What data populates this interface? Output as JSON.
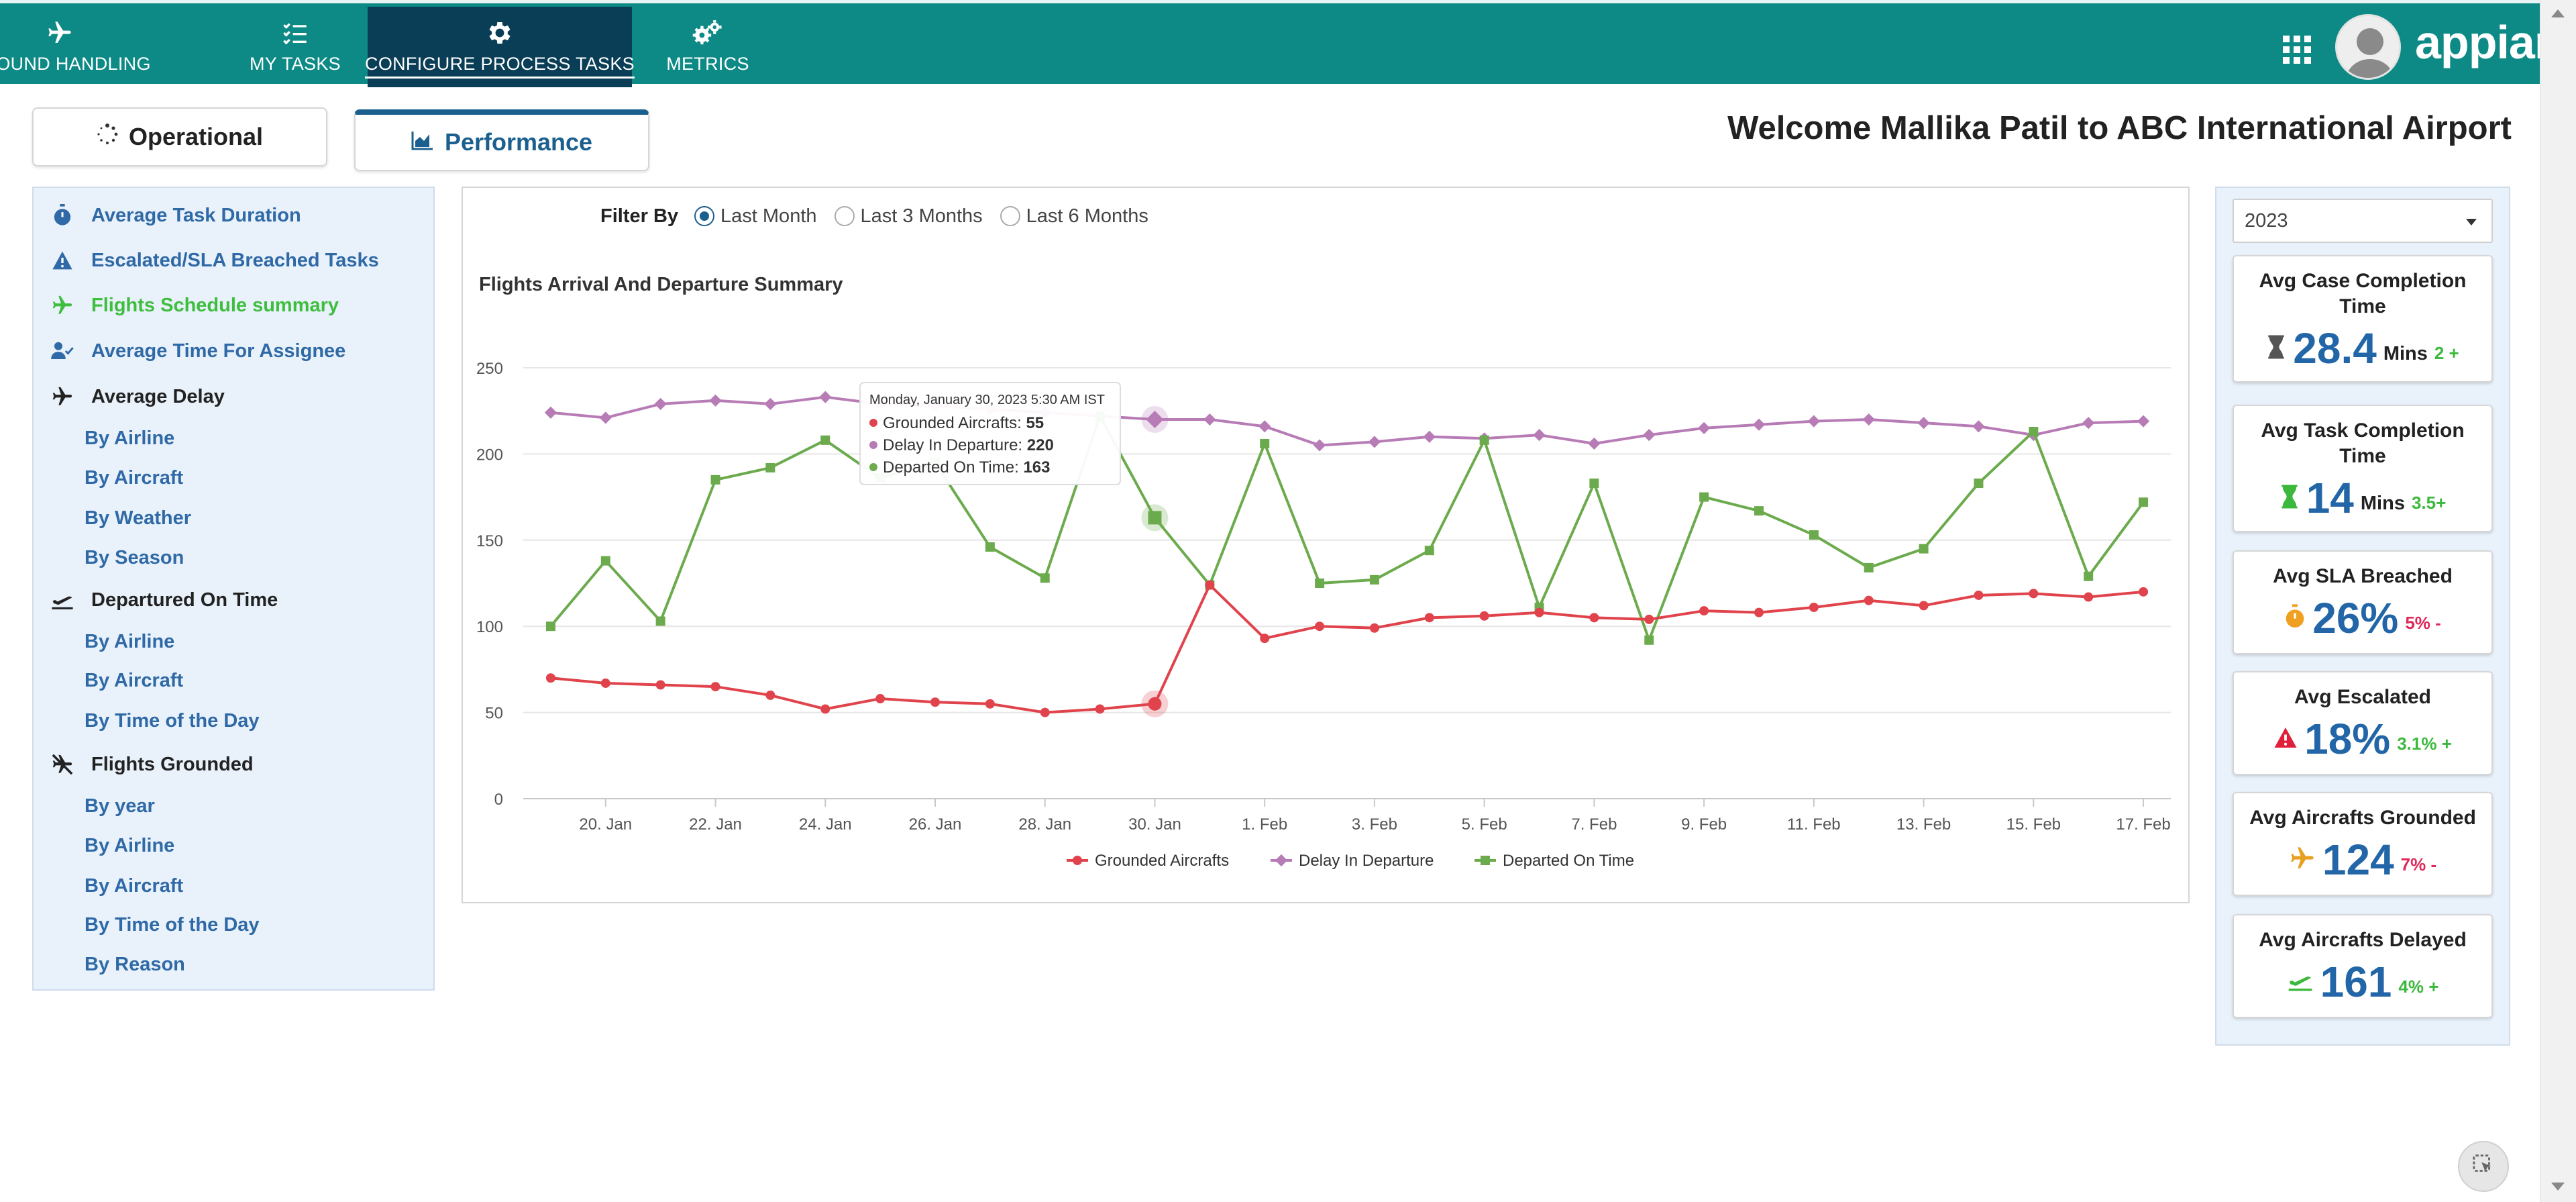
{
  "nav": {
    "tabs": [
      {
        "label": "GROUND HANDLING",
        "icon": "plane-icon"
      },
      {
        "label": "MY TASKS",
        "icon": "checklist-icon"
      },
      {
        "label": "CONFIGURE PROCESS TASKS",
        "icon": "gear-icon",
        "active": true
      },
      {
        "label": "METRICS",
        "icon": "gears-icon"
      }
    ],
    "brand": "appian"
  },
  "main_tabs": {
    "operational": "Operational",
    "performance": "Performance"
  },
  "welcome": "Welcome Mallika Patil to ABC International Airport",
  "sidebar": {
    "items": [
      {
        "label": "Average Task Duration",
        "icon": "stopwatch-icon"
      },
      {
        "label": "Escalated/SLA Breached Tasks",
        "icon": "warning-icon"
      },
      {
        "label": "Flights Schedule summary",
        "icon": "plane-icon",
        "active": true
      },
      {
        "label": "Average Time For Assignee",
        "icon": "user-check-icon"
      },
      {
        "label": "Average Delay",
        "icon": "plane-icon"
      },
      {
        "label": "Departured On Time",
        "icon": "plane-departure-icon"
      },
      {
        "label": "Flights Grounded",
        "icon": "plane-slash-icon"
      }
    ],
    "average_delay_subs": [
      "By Airline",
      "By Aircraft",
      "By Weather",
      "By Season"
    ],
    "departured_subs": [
      "By Airline",
      "By Aircraft",
      "By Time of the Day"
    ],
    "grounded_subs": [
      "By year",
      "By Airline",
      "By Aircraft",
      "By Time of the Day",
      "By Reason"
    ]
  },
  "filter": {
    "label": "Filter By",
    "options": [
      "Last Month",
      "Last 3 Months",
      "Last 6 Months"
    ],
    "selected": "Last Month"
  },
  "chart_title": "Flights Arrival And Departure Summary",
  "chart_data": {
    "type": "line",
    "x_tick_labels": [
      "20. Jan",
      "22. Jan",
      "24. Jan",
      "26. Jan",
      "28. Jan",
      "30. Jan",
      "1. Feb",
      "3. Feb",
      "5. Feb",
      "7. Feb",
      "9. Feb",
      "11. Feb",
      "13. Feb",
      "15. Feb",
      "17. Feb"
    ],
    "x_start": "2023-01-19",
    "ylim": [
      0,
      250
    ],
    "y_ticks": [
      0,
      50,
      100,
      150,
      200,
      250
    ],
    "grid": true,
    "legend_position": "bottom-center",
    "series": [
      {
        "name": "Grounded Aircrafts",
        "color": "#e0434b",
        "marker": "circle",
        "values": [
          70,
          67,
          66,
          65,
          60,
          52,
          58,
          56,
          55,
          50,
          52,
          55,
          124,
          93,
          100,
          99,
          105,
          106,
          108,
          105,
          104,
          109,
          108,
          111,
          115,
          112,
          118,
          119,
          117,
          120
        ]
      },
      {
        "name": "Delay In Departure",
        "color": "#b77cb6",
        "marker": "diamond",
        "values": [
          224,
          221,
          229,
          231,
          229,
          233,
          229,
          228,
          226,
          224,
          222,
          220,
          220,
          216,
          205,
          207,
          210,
          209,
          211,
          206,
          211,
          215,
          217,
          219,
          220,
          218,
          216,
          211,
          218,
          219
        ]
      },
      {
        "name": "Departed On Time",
        "color": "#6cab4d",
        "marker": "square",
        "values": [
          100,
          138,
          103,
          185,
          192,
          208,
          186,
          195,
          146,
          128,
          222,
          163,
          124,
          206,
          125,
          127,
          144,
          208,
          111,
          183,
          92,
          175,
          167,
          153,
          134,
          145,
          183,
          213,
          129,
          172
        ]
      }
    ],
    "tooltip": {
      "header": "Monday, January 30, 2023 5:30 AM IST",
      "rows": [
        {
          "label": "Grounded Aircrafts",
          "value": "55",
          "color": "#e0434b"
        },
        {
          "label": "Delay In Departure",
          "value": "220",
          "color": "#b77cb6"
        },
        {
          "label": "Departed On Time",
          "value": "163",
          "color": "#6cab4d"
        }
      ],
      "index": 11
    }
  },
  "year_select": "2023",
  "kpis": [
    {
      "title": "Avg Case Completion Time",
      "value": "28.4",
      "unit": "Mins",
      "change": "2 +",
      "trend": "up",
      "icon": "hourglass-icon",
      "icon_color": "#555555"
    },
    {
      "title": "Avg Task Completion Time",
      "value": "14",
      "unit": "Mins",
      "change": "3.5+",
      "trend": "up",
      "icon": "hourglass-icon",
      "icon_color": "#3cb83c"
    },
    {
      "title": "Avg SLA Breached",
      "value": "26%",
      "unit": "",
      "change": "5% -",
      "trend": "down",
      "icon": "stopwatch-icon",
      "icon_color": "#f0a020"
    },
    {
      "title": "Avg Escalated",
      "value": "18%",
      "unit": "",
      "change": "3.1% +",
      "trend": "up",
      "icon": "warning-icon",
      "icon_color": "#e0203a"
    },
    {
      "title": "Avg Aircrafts Grounded",
      "value": "124",
      "unit": "",
      "change": "7% -",
      "trend": "down",
      "icon": "plane-icon",
      "icon_color": "#e8a020"
    },
    {
      "title": "Avg Aircrafts Delayed",
      "value": "161",
      "unit": "",
      "change": "4% +",
      "trend": "up",
      "icon": "plane-departure-icon",
      "icon_color": "#3cb83c"
    }
  ]
}
